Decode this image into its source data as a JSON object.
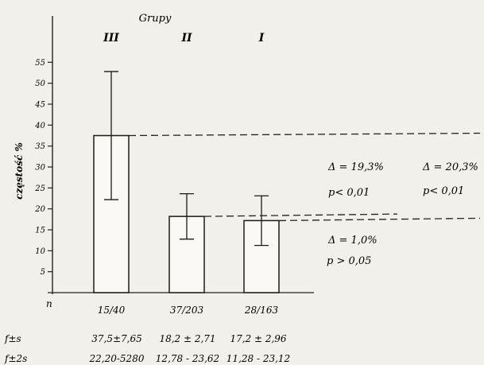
{
  "chart_data": {
    "type": "bar",
    "title": "Grupy",
    "ylabel": "częstość %",
    "ylim": [
      0,
      60
    ],
    "yticks": [
      5,
      10,
      15,
      20,
      25,
      30,
      35,
      40,
      45,
      50,
      55
    ],
    "ytick_labels": [
      "5",
      "10",
      "15",
      "20",
      "25",
      "30",
      "35",
      "40",
      "45",
      "50",
      "55"
    ],
    "grid": false,
    "categories": [
      "III",
      "II",
      "I"
    ],
    "values": [
      37.5,
      18.2,
      17.2
    ],
    "error_low": [
      22.2,
      12.78,
      11.28
    ],
    "error_high": [
      52.8,
      23.62,
      23.12
    ],
    "row_labels": {
      "n": "n",
      "fs": "f±s",
      "f2s": "f±2s"
    },
    "n_labels": [
      "15/40",
      "37/203",
      "28/163"
    ],
    "fs_labels": [
      "37,5±7,65",
      "18,2 ± 2,71",
      "17,2 ± 2,96"
    ],
    "f2s_labels": [
      "22,20-5280",
      "12,78 - 23,62",
      "11,28 - 23,12"
    ],
    "annotations": [
      {
        "pair": [
          "III",
          "II"
        ],
        "delta": "Δ = 19,3%",
        "p": "p< 0,01"
      },
      {
        "pair": [
          "III",
          "I"
        ],
        "delta": "Δ = 20,3%",
        "p": "p< 0,01"
      },
      {
        "pair": [
          "II",
          "I"
        ],
        "delta": "Δ = 1,0%",
        "p": "p > 0,05"
      }
    ]
  }
}
